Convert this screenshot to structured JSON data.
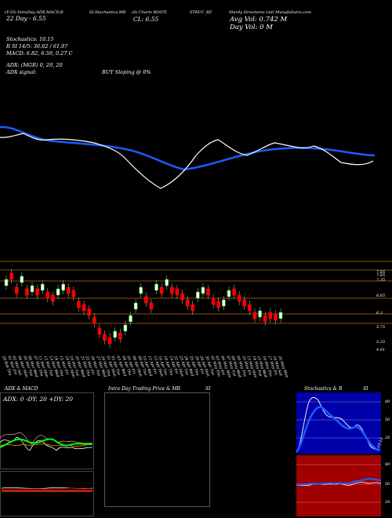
{
  "header": {
    "line1": [
      "(Y-20) IntraDay ADX,MACD,B",
      "SI,Stochastics,MR",
      "(S) Charts ROOTI",
      "STRUC_BZ",
      "Sturdy Structures Ltd) MunafaSutra.com"
    ],
    "line2_left": "22  Day - 6.55",
    "line2_mid": "CL: 6.55",
    "avg_vol": "Avg Vol: 0.742  M",
    "day_vol": "Day Vol: 0   M",
    "stoch": "Stochastics: 10.15",
    "rsi": "R   SI 14/5: 36.62 / 61.97",
    "macd": "MACD: 6.82,  6.59,  0.27  C",
    "adx": "ADX:                           (MGR) 0,  20,  20",
    "adx_signal": "ADX   signal:",
    "buy_signal": "BUY Sloping @ 0%"
  },
  "price_axis": [
    "7.85",
    "7.65",
    "7.35",
    "6.85",
    "6.3",
    "5.75",
    "5.25",
    "4.91"
  ],
  "dates": [
    "29 Feb Thu",
    "01 Mar Fri",
    "02 Mar Sat",
    "04 Mar Mon",
    "05 Mar Tue",
    "06 Mar Wed",
    "07 Mar Thu",
    "11 Mar Mon",
    "12 Mar Tue",
    "13 Mar Wed",
    "14 Mar Thu",
    "15 Mar Fri",
    "18 Mar Mon",
    "19 Mar Tue",
    "20 Mar Wed",
    "21 Mar Thu",
    "22 Mar Fri",
    "26 Mar Tue",
    "27 Mar Wed",
    "28 Mar Thu",
    "01 Apr Mon",
    "02 Apr Tue",
    "03 Apr Wed",
    "04 Apr Thu",
    "05 Apr Fri",
    "08 Apr Mon",
    "09 Apr Tue",
    "10 Apr Wed",
    "12 Apr Fri",
    "15 Apr Mon",
    "16 Apr Tue",
    "18 Apr Thu",
    "19 Apr Fri",
    "22 Apr Mon",
    "23 Apr Tue",
    "24 Apr Wed",
    "25 Apr Thu",
    "26 Apr Fri",
    "29 Apr Mon",
    "30 Apr Tue",
    "02 May Thu",
    "03 May Fri",
    "06 May Mon",
    "07 May Tue",
    "08 May Wed",
    "09 May Thu",
    "10 May Fri",
    "13 May Mon",
    "14 May Tue",
    "15 May Wed",
    "16 May Thu",
    "17 May Fri",
    "18 May Sat",
    "20 May Mon"
  ],
  "panels": {
    "adx_title": "ADX  & MACD",
    "adx_values": "ADX: 0  -DY: 20  +DY: 20",
    "mr_title": "Intra  Day Trading Price  & MR",
    "mr_si": "SI",
    "stoch_title": "Stochastics & R",
    "stoch_si": "SI",
    "stoch_ticks": [
      "80",
      "50",
      "20"
    ],
    "rsi_ticks": [
      "80",
      "50",
      "20"
    ],
    "stoch_value_label": "10.15"
  },
  "colors": {
    "ma": "#1a5cff",
    "up": "#00cc00",
    "down": "#ff0000",
    "hline": "#b8690e",
    "rsi_bg": "#a00000",
    "stoch_bg": "#0000aa",
    "adx_green": "#00ff00"
  }
}
